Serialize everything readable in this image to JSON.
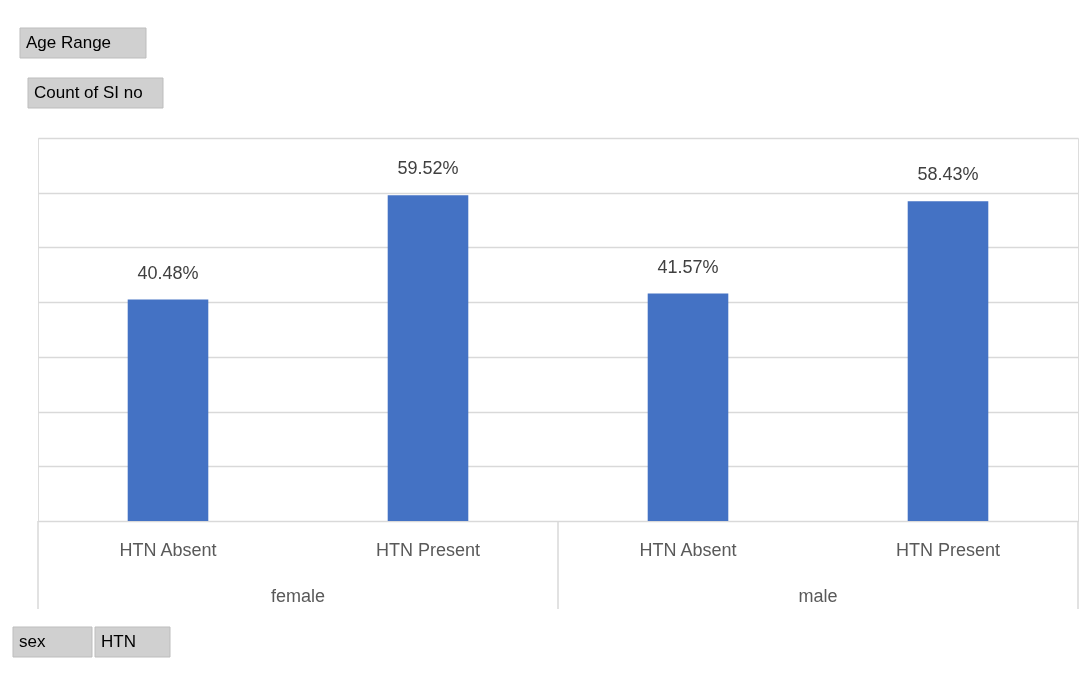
{
  "chart_data": {
    "type": "bar",
    "categories": [
      "HTN Absent",
      "HTN Present",
      "HTN Absent",
      "HTN Present"
    ],
    "values": [
      40.48,
      59.52,
      41.57,
      58.43
    ],
    "value_labels": [
      "40.48%",
      "59.52%",
      "41.57%",
      "58.43%"
    ],
    "color": "#4472c4",
    "ylim": [
      0,
      70
    ],
    "yticks": [
      {
        "value": 0,
        "label": null
      },
      {
        "value": 10,
        "label": null
      },
      {
        "value": 20,
        "label": null
      },
      {
        "value": 30,
        "label": null
      },
      {
        "value": 40,
        "label": null
      },
      {
        "value": 50,
        "label": null
      },
      {
        "value": 60,
        "label": null
      },
      {
        "value": 70,
        "label": null
      }
    ],
    "grid": "y",
    "tick_labels": "x",
    "annotations": [
      "Age Range",
      "Count of SI no",
      "female",
      "male",
      "sex",
      "HTN"
    ]
  }
}
